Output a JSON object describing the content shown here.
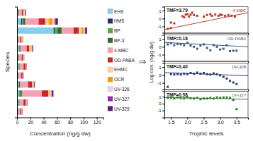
{
  "chart_data": [
    {
      "type": "bar",
      "orientation": "horizontal",
      "stacked": true,
      "xlabel": "Concentration (ng/g dw)",
      "ylabel": "Species",
      "xlim": [
        0,
        130
      ],
      "xticks": [
        0,
        20,
        40,
        60,
        80,
        100,
        120
      ],
      "tick_labels": "x",
      "legend": "right",
      "annotation": "⇒",
      "categories": [
        null,
        null,
        null,
        null,
        null,
        null,
        null,
        null,
        null,
        null,
        null,
        null
      ],
      "series": [
        {
          "name": "EHS",
          "color": "#87ceeb",
          "values": [
            1,
            2,
            3,
            2,
            1,
            2,
            1.5,
            3,
            1,
            55,
            6,
            1.5
          ]
        },
        {
          "name": "HMS",
          "color": "#1a3a6b",
          "values": [
            0.3,
            0.5,
            0.8,
            0.5,
            0.3,
            0.3,
            0.3,
            0.8,
            0.3,
            2,
            1.5,
            0.3
          ]
        },
        {
          "name": "BP",
          "color": "#55aa44",
          "values": [
            0.3,
            0.5,
            1.5,
            0.8,
            0.3,
            0.8,
            0.3,
            0.8,
            0.3,
            4,
            2,
            0.8
          ]
        },
        {
          "name": "BP-3",
          "color": "#2e6b2e",
          "values": [
            0.3,
            0.8,
            2,
            1.5,
            0.8,
            0.8,
            0.8,
            0.8,
            0.3,
            6,
            3,
            0.8
          ]
        },
        {
          "name": "4-MBC",
          "color": "#f4a0b0",
          "values": [
            3,
            6,
            30,
            12,
            4,
            6,
            4,
            9,
            3,
            18,
            20,
            4
          ]
        },
        {
          "name": "OD-PABA",
          "color": "#c62828",
          "values": [
            2,
            3,
            10,
            6,
            2,
            3,
            2,
            4,
            1.5,
            8,
            10,
            2
          ]
        },
        {
          "name": "EHMC",
          "color": "#ffd090",
          "values": [
            0.3,
            0.5,
            1.5,
            0.8,
            0.3,
            0.3,
            0.3,
            1.5,
            0.3,
            4,
            5,
            0.8
          ]
        },
        {
          "name": "OCR",
          "color": "#ff9800",
          "values": [
            0.5,
            0.8,
            1.5,
            0.8,
            0.5,
            0.5,
            0.8,
            2,
            1.5,
            3,
            6,
            0.8
          ]
        },
        {
          "name": "UV-326",
          "color": "#e8d5e8",
          "values": [
            0.3,
            0.5,
            1.5,
            0.8,
            0.3,
            0.3,
            0.3,
            0.8,
            0.3,
            2,
            3,
            0.8
          ]
        },
        {
          "name": "UV-327",
          "color": "#9c27b0",
          "values": [
            0.3,
            0.5,
            1.5,
            0.8,
            0.3,
            0.3,
            0.3,
            0.8,
            0.3,
            1.5,
            2,
            0.8
          ]
        },
        {
          "name": "UV-329",
          "color": "#5a1a7a",
          "values": [
            0.3,
            0.5,
            1.5,
            0.8,
            0.3,
            0.3,
            0.3,
            0.8,
            0.3,
            2,
            3,
            0.8
          ]
        }
      ]
    },
    {
      "type": "scatter",
      "annotation": "TMF=3.79",
      "ylabel": "Log-con. (ng/g dw)",
      "xlim": [
        1.3,
        3.85
      ],
      "ylim": [
        -1.8,
        1.5
      ],
      "yticks": [
        -1,
        0,
        1
      ],
      "tick_labels": "y",
      "series": [
        {
          "name": "4-MBC",
          "type": "scatter",
          "marker": "square",
          "color": "#c0392b",
          "x": [
            1.4,
            1.5,
            1.5,
            1.6,
            1.85,
            1.9,
            1.95,
            2.0,
            2.05,
            2.1,
            2.15,
            2.2,
            2.3,
            2.5,
            2.6,
            2.7,
            2.75,
            2.85,
            2.95,
            3.0,
            3.05,
            3.15,
            3.25,
            3.35,
            3.45
          ],
          "values": [
            -1.3,
            -1.2,
            -0.5,
            -0.6,
            0.3,
            0.15,
            0.5,
            0.55,
            0.25,
            0.5,
            0.75,
            0.45,
            0.35,
            0.25,
            0.45,
            0.55,
            0.35,
            0.5,
            0.35,
            0.5,
            0.45,
            0.35,
            0.45,
            0.35,
            0.25
          ]
        },
        {
          "type": "line",
          "color": "#c0392b",
          "x": [
            1.3,
            3.85
          ],
          "values": [
            -1.4,
            0.75
          ]
        }
      ]
    },
    {
      "type": "scatter",
      "annotation": "TMF=0.18",
      "xlim": [
        1.3,
        3.85
      ],
      "ylim": [
        -1.8,
        1.5
      ],
      "yticks": [
        -1,
        0,
        1
      ],
      "tick_labels": "y",
      "series": [
        {
          "name": "OD-PABA",
          "type": "scatter",
          "marker": "square",
          "color": "#3d5a80",
          "x": [
            1.4,
            1.5,
            1.6,
            1.7,
            1.8,
            1.9,
            2.0,
            2.1,
            2.2,
            2.3,
            2.4,
            2.5,
            2.6,
            2.7,
            2.8,
            2.9,
            3.0,
            3.1,
            3.2,
            3.3,
            3.4,
            3.5
          ],
          "values": [
            0.3,
            0.45,
            0.2,
            0.35,
            0.3,
            0.2,
            0.5,
            0.15,
            0.0,
            -0.25,
            0.15,
            0.3,
            -0.15,
            -0.45,
            0.2,
            0.0,
            -0.35,
            -0.25,
            0.2,
            -0.55,
            -0.5,
            -0.5
          ]
        },
        {
          "type": "line",
          "color": "#3d5a80",
          "x": [
            1.3,
            3.85
          ],
          "values": [
            0.55,
            0.0
          ]
        }
      ]
    },
    {
      "type": "scatter",
      "annotation": "TMF=0.40",
      "xlim": [
        1.3,
        3.85
      ],
      "ylim": [
        -1.8,
        1.5
      ],
      "yticks": [
        -1,
        0,
        1
      ],
      "tick_labels": "y",
      "series": [
        {
          "name": "UV-326",
          "type": "scatter",
          "marker": "square",
          "color": "#2c3e6e",
          "x": [
            1.4,
            1.5,
            1.6,
            1.7,
            1.8,
            1.9,
            2.0,
            2.1,
            2.2,
            2.3,
            2.4,
            2.5,
            2.6,
            2.7,
            2.8,
            2.9,
            3.0,
            3.1,
            3.2,
            3.3,
            3.4,
            3.5
          ],
          "values": [
            -1.5,
            0.1,
            0.05,
            0.1,
            0.05,
            0.15,
            0.1,
            0.25,
            0.15,
            0.3,
            0.15,
            0.25,
            0.1,
            0.05,
            0.2,
            0.1,
            -0.05,
            -0.25,
            -0.45,
            -0.75,
            -0.95,
            -1.15
          ]
        },
        {
          "type": "line",
          "color": "#2c3e6e",
          "x": [
            1.3,
            3.85
          ],
          "values": [
            0.3,
            -0.1
          ]
        }
      ]
    },
    {
      "type": "scatter",
      "annotation": "TMF=0.58",
      "xlabel": "Trophic levels",
      "xlim": [
        1.3,
        3.85
      ],
      "xticks": [
        1.5,
        {
          "value": 2,
          "label": "2.0"
        },
        2.5,
        {
          "value": 3,
          "label": "3.0"
        },
        3.5
      ],
      "ylim": [
        -2.0,
        1.8
      ],
      "yticks": [
        -1,
        0,
        1
      ],
      "series": [
        {
          "name": "UV-327",
          "type": "scatter",
          "marker": "square",
          "color": "#2d7a2d",
          "x": [
            1.4,
            1.5,
            1.6,
            1.7,
            1.8,
            1.9,
            2.0,
            2.1,
            2.2,
            2.3,
            2.4,
            2.5,
            2.6,
            2.7,
            2.8,
            2.9,
            3.0,
            3.1,
            3.2,
            3.3,
            3.4,
            3.5
          ],
          "values": [
            0.85,
            0.85,
            0.75,
            0.9,
            0.8,
            0.75,
            0.9,
            0.8,
            0.75,
            0.85,
            0.65,
            0.75,
            0.75,
            0.85,
            0.75,
            0.9,
            0.85,
            0.9,
            0.9,
            0.85,
            0.55,
            -0.8
          ]
        },
        {
          "type": "line",
          "color": "#2d7a2d",
          "x": [
            1.3,
            3.85
          ],
          "values": [
            0.9,
            0.65
          ]
        }
      ]
    }
  ]
}
